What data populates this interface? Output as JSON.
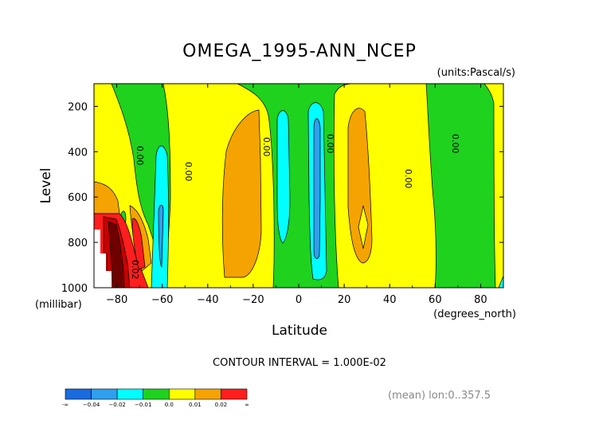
{
  "chart_data": {
    "type": "contour",
    "title": "OMEGA_1995-ANN_NCEP",
    "units_label": "(units:Pascal/s)",
    "xlabel": "Latitude",
    "ylabel": "Level",
    "x_units": "(degrees_north)",
    "y_units": "(millibar)",
    "xlim": [
      -90,
      90
    ],
    "ylim": [
      1000,
      100
    ],
    "x_ticks": [
      -80,
      -60,
      -40,
      -20,
      0,
      20,
      40,
      60,
      80
    ],
    "x_tick_labels": [
      "−80",
      "−60",
      "−40",
      "−20",
      "0",
      "20",
      "40",
      "60",
      "80"
    ],
    "y_ticks": [
      200,
      400,
      600,
      800,
      1000
    ],
    "y_tick_labels": [
      "200",
      "400",
      "600",
      "800",
      "1000"
    ],
    "contour_interval_text": "CONTOUR INTERVAL = 1.000E-02",
    "mean_note": "(mean) lon:0..357.5",
    "contour_labels": [
      {
        "text": "0.00",
        "lat": -72,
        "level": 370
      },
      {
        "text": "0.00",
        "lat": -48,
        "level": 500
      },
      {
        "text": "0.00",
        "lat": -14,
        "level": 350
      },
      {
        "text": "0.00",
        "lat": 14,
        "level": 350
      },
      {
        "text": "0.00",
        "lat": 48,
        "level": 540
      },
      {
        "text": "0.00",
        "lat": 70,
        "level": 350
      },
      {
        "text": "0.02",
        "lat": -72,
        "level": 930
      }
    ],
    "colorbar": {
      "levels": [
        "-∞",
        "−0.04",
        "−0.02",
        "−0.01",
        "0.0",
        "0.01",
        "0.02",
        "∞"
      ],
      "colors": [
        "#1a6be0",
        "#2fa0ee",
        "#00ffff",
        "#1ed21e",
        "#ffff00",
        "#f5a300",
        "#ff1e1e"
      ]
    },
    "regions": [
      {
        "name": "left-yellow-band",
        "value_range": [
          0.0,
          0.01
        ]
      },
      {
        "name": "sh-subtropic-orange",
        "value_range": [
          0.01,
          0.02
        ],
        "lat_range": [
          -32,
          -14
        ],
        "level_range": [
          250,
          900
        ]
      },
      {
        "name": "sh-cyan-cell",
        "value_range": [
          -0.02,
          -0.01
        ],
        "lat_range": [
          -66,
          -56
        ],
        "level_range": [
          370,
          1000
        ]
      },
      {
        "name": "sh-blue-core",
        "value_range": [
          -0.04,
          -0.02
        ],
        "lat_range": [
          -63,
          -60
        ],
        "level_range": [
          540,
          880
        ]
      },
      {
        "name": "eq-cyan-left",
        "value_range": [
          -0.02,
          -0.01
        ],
        "lat_range": [
          -10,
          -3
        ],
        "level_range": [
          230,
          820
        ]
      },
      {
        "name": "eq-cyan-right",
        "value_range": [
          -0.02,
          -0.01
        ],
        "lat_range": [
          3,
          13
        ],
        "level_range": [
          230,
          950
        ]
      },
      {
        "name": "eq-blue-core",
        "value_range": [
          -0.04,
          -0.02
        ],
        "lat_range": [
          6,
          9
        ],
        "level_range": [
          270,
          860
        ]
      },
      {
        "name": "nh-subtropic-orange",
        "value_range": [
          0.01,
          0.02
        ],
        "lat_range": [
          19,
          34
        ],
        "level_range": [
          220,
          880
        ]
      },
      {
        "name": "polar-red",
        "value_range": [
          0.02,
          0.1
        ],
        "lat_range": [
          -87,
          -68
        ],
        "level_range": [
          640,
          1000
        ]
      }
    ]
  }
}
